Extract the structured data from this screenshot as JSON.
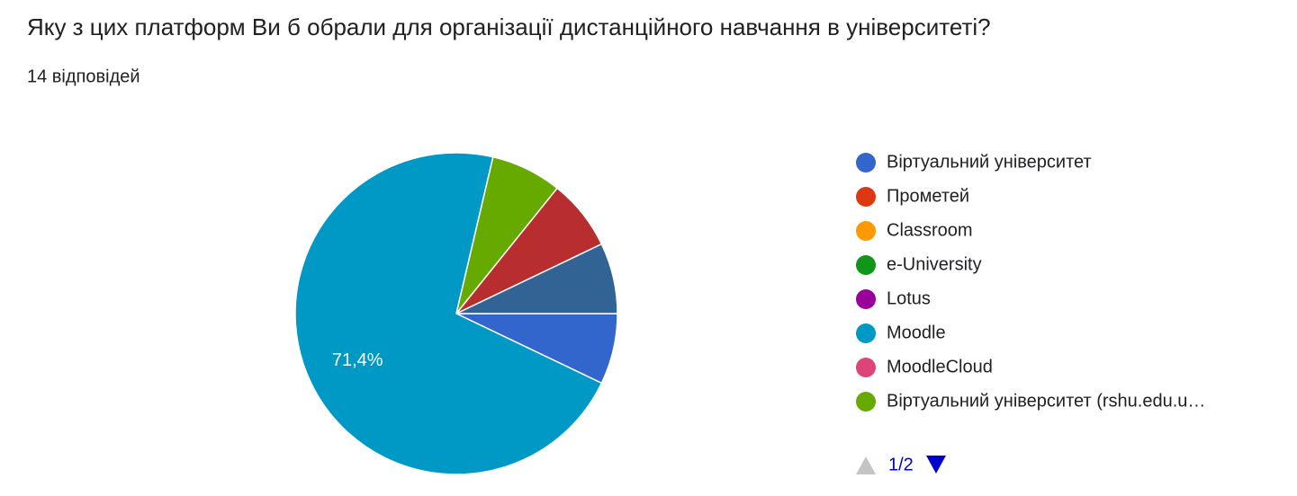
{
  "chart_data": {
    "type": "pie",
    "title": "Яку з цих платформ Ви б обрали для організації дистанційного навчання в університеті?",
    "subtitle": "14 відповідей",
    "categories": [
      "Віртуальний університет",
      "Прометей",
      "Classroom",
      "e-University",
      "Lotus",
      "Moodle",
      "MoodleCloud",
      "Віртуальний університет (rshu.edu.u…",
      null,
      null
    ],
    "values": [
      7.1,
      0,
      0,
      0,
      0,
      71.4,
      0,
      7.1,
      7.1,
      7.1
    ],
    "value_labels": [
      null,
      null,
      null,
      null,
      null,
      "71,4%",
      null,
      null,
      null,
      null
    ],
    "colors": [
      "#3366cc",
      "#dc3912",
      "#ff9900",
      "#109618",
      "#990099",
      "#0099c6",
      "#dd4477",
      "#66aa00",
      "#b82e2e",
      "#316395"
    ],
    "legend_page": "1/2"
  }
}
